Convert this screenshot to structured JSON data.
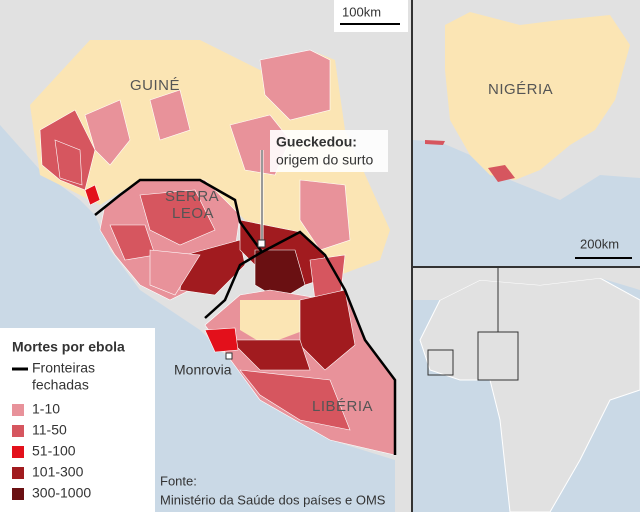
{
  "main_map": {
    "country_labels": {
      "guinea": "GUINÉ",
      "sierra_leone": [
        "SERRA",
        "LEOA"
      ],
      "liberia": "LIBÉRIA"
    },
    "city": "Monrovia",
    "callout": {
      "title": "Gueckedou:",
      "text": "origem do surto"
    },
    "scale": "100km",
    "source": {
      "label": "Fonte:",
      "text": "Ministério da Saúde dos países e OMS"
    }
  },
  "legend": {
    "title": "Mortes por ebola",
    "border": [
      "Fronteiras",
      "fechadas"
    ],
    "items": [
      {
        "label": "1-10",
        "color": "#e8929a"
      },
      {
        "label": "11-50",
        "color": "#d6565f"
      },
      {
        "label": "51-100",
        "color": "#e3101b"
      },
      {
        "label": "101-300",
        "color": "#a11b1f"
      },
      {
        "label": "300-1000",
        "color": "#6a1012"
      }
    ]
  },
  "inset_nigeria": {
    "label": "NIGÉRIA",
    "scale": "200km"
  }
}
